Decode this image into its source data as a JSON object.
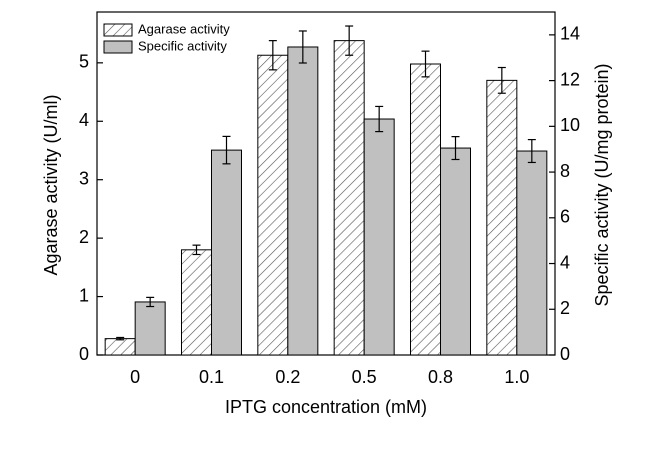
{
  "chart_data": {
    "type": "bar",
    "x_label": "IPTG concentration (mM)",
    "y_label": "Agarase activity (U/ml)",
    "y2_label": "Specific activity (U/mg protein)",
    "categories": [
      "0",
      "0.1",
      "0.2",
      "0.5",
      "0.8",
      "1.0"
    ],
    "series": [
      {
        "name": "Agarase activity",
        "color": "#ffffff",
        "hatch": true,
        "values": [
          0.28,
          1.8,
          5.13,
          5.38,
          4.98,
          4.7
        ],
        "errors": [
          0.02,
          0.08,
          0.25,
          0.25,
          0.22,
          0.22
        ]
      },
      {
        "name": "Specific activity",
        "color": "#c0c0c0",
        "hatch": false,
        "axis": "y2",
        "values": [
          2.32,
          8.96,
          13.47,
          10.32,
          9.05,
          8.92
        ],
        "errors": [
          0.2,
          0.6,
          0.7,
          0.55,
          0.5,
          0.5
        ]
      }
    ],
    "ylim": [
      0,
      5.87
    ],
    "yticks": [
      0,
      1,
      2,
      3,
      4,
      5
    ],
    "y2lim": [
      0,
      15
    ],
    "y2ticks": [
      0,
      2,
      4,
      6,
      8,
      10,
      12,
      14
    ],
    "legend": "top-left"
  }
}
